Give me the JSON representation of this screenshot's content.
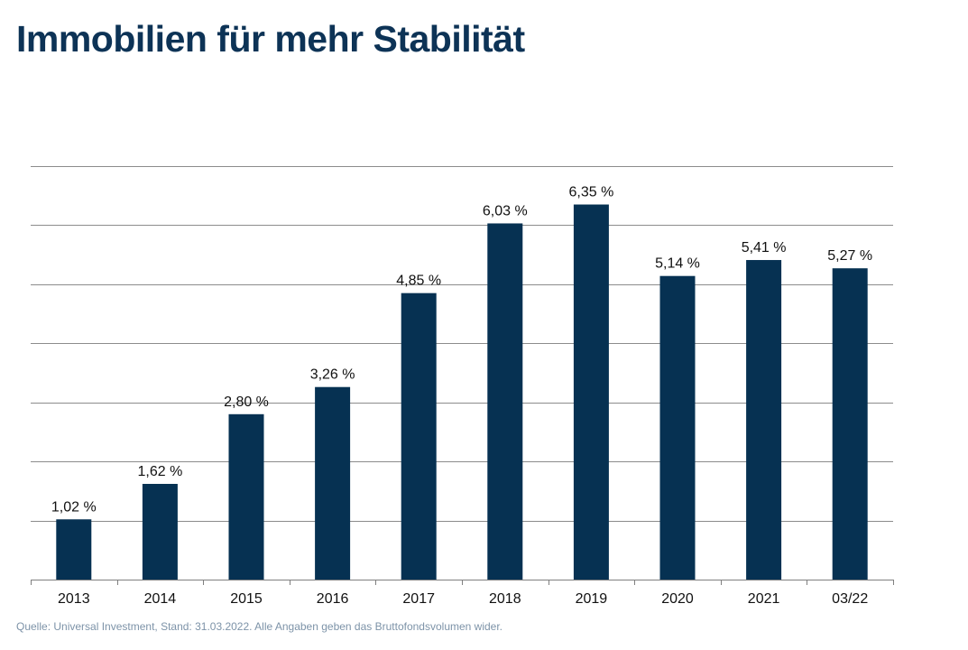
{
  "header": {
    "title": "Immobilien für mehr Stabilität"
  },
  "footer": {
    "source_note": "Quelle: Universal Investment, Stand: 31.03.2022. Alle Angaben geben das Bruttofondsvolumen wider."
  },
  "colors": {
    "title": "#0d3356",
    "bar": "#063152",
    "gridline": "#8c8c8c",
    "axis": "#7f7f7f",
    "label": "#111111",
    "footnote": "#7d93a8"
  },
  "chart_data": {
    "type": "bar",
    "title": "",
    "xlabel": "",
    "ylabel": "",
    "categories": [
      "2013",
      "2014",
      "2015",
      "2016",
      "2017",
      "2018",
      "2019",
      "2020",
      "2021",
      "03/22"
    ],
    "values": [
      1.02,
      1.62,
      2.8,
      3.26,
      4.85,
      6.03,
      6.35,
      5.14,
      5.41,
      5.27
    ],
    "data_labels": [
      "1,02 %",
      "1,62 %",
      "2,80 %",
      "3,26 %",
      "4,85 %",
      "6,03 %",
      "6,35 %",
      "5,14 %",
      "5,41 %",
      "5,27 %"
    ],
    "ylim": [
      0,
      7
    ],
    "ytick_step": 1,
    "y_tick_labels_shown": false,
    "grid": true,
    "legend": "none"
  }
}
